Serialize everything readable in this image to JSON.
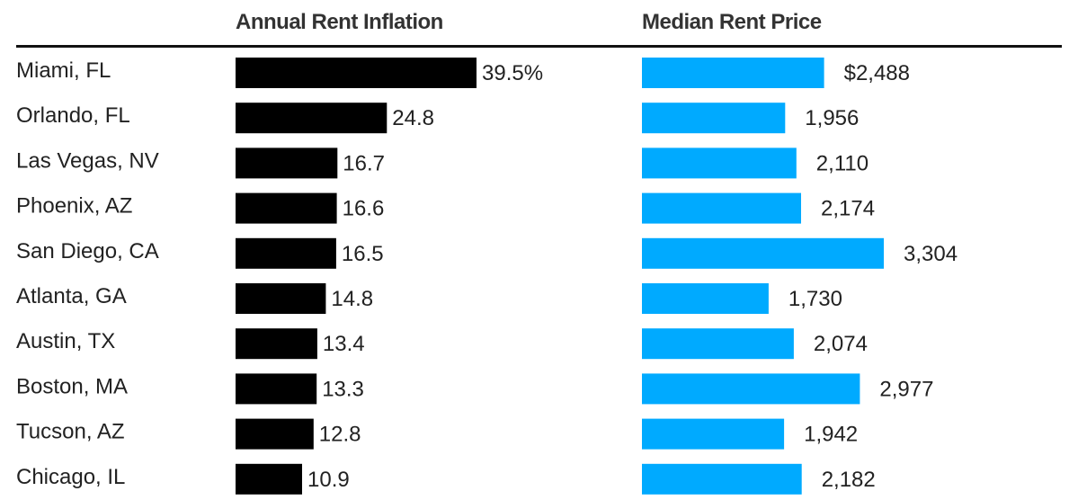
{
  "chart_data": {
    "type": "bar",
    "orientation": "horizontal",
    "colors": {
      "inflation": "#000000",
      "rent": "#00aaff",
      "rule": "#111111",
      "text": "#222222",
      "header": "#333333"
    },
    "categories": [
      "Miami, FL",
      "Orlando, FL",
      "Las Vegas, NV",
      "Phoenix, AZ",
      "San Diego, CA",
      "Atlanta, GA",
      "Austin, TX",
      "Boston, MA",
      "Tucson, AZ",
      "Chicago, IL"
    ],
    "series": [
      {
        "name": "Annual Rent Inflation",
        "values": [
          39.5,
          24.8,
          16.7,
          16.6,
          16.5,
          14.8,
          13.4,
          13.3,
          12.8,
          10.9
        ],
        "labels": [
          "39.5%",
          "24.8",
          "16.7",
          "16.6",
          "16.5",
          "14.8",
          "13.4",
          "13.3",
          "12.8",
          "10.9"
        ]
      },
      {
        "name": "Median Rent Price",
        "values": [
          2488,
          1956,
          2110,
          2174,
          3304,
          1730,
          2074,
          2977,
          1942,
          2182
        ],
        "labels": [
          "$2,488",
          "1,956",
          "2,110",
          "2,174",
          "3,304",
          "1,730",
          "2,074",
          "2,977",
          "1,942",
          "2,182"
        ]
      }
    ]
  }
}
